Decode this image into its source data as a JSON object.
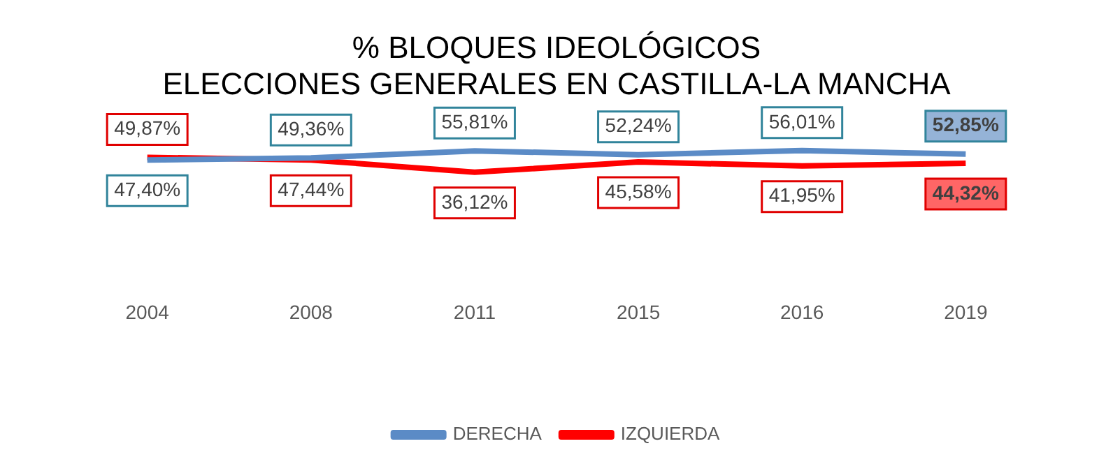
{
  "chart_data": {
    "type": "line",
    "title": "% BLOQUES IDEOLÓGICOS\nELECCIONES GENERALES EN CASTILLA-LA MANCHA",
    "categories": [
      "2004",
      "2008",
      "2011",
      "2015",
      "2016",
      "2019"
    ],
    "series": [
      {
        "name": "DERECHA",
        "color": "#5b8bc6",
        "values": [
          47.4,
          49.36,
          55.81,
          52.24,
          56.01,
          52.85
        ],
        "value_labels": [
          "47,40%",
          "49,36%",
          "55,81%",
          "52,24%",
          "56,01%",
          "52,85%"
        ]
      },
      {
        "name": "IZQUIERDA",
        "color": "#ff0000",
        "values": [
          49.87,
          47.44,
          36.12,
          45.58,
          41.95,
          44.32
        ],
        "value_labels": [
          "49,87%",
          "47,44%",
          "36,12%",
          "45,58%",
          "41,95%",
          "44,32%"
        ]
      }
    ],
    "grid": false,
    "legend": "bottom",
    "tick_labels": "x",
    "marker": "none"
  }
}
